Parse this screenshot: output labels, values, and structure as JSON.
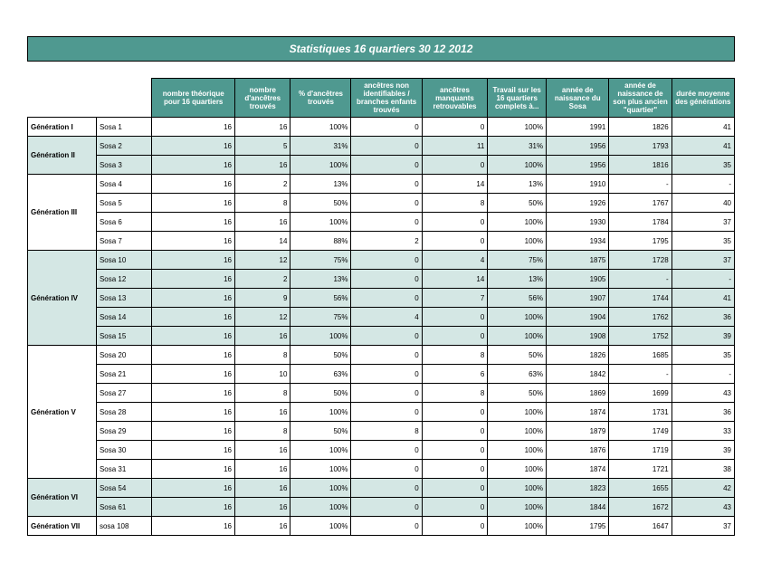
{
  "title": "Statistiques 16 quartiers  30 12 2012",
  "headers": [
    "nombre théorique pour 16 quartiers",
    "nombre d'ancêtres trouvés",
    "% d'ancêtres trouvés",
    "ancêtres non identifiables / branches enfants trouvés",
    "ancêtres manquants retrouvables",
    "Travail sur les 16 quartiers complets à...",
    "année de naissance du Sosa",
    "année de naissance de son plus ancien \"quartier\"",
    "durée moyenne des générations"
  ],
  "groups": [
    {
      "gen": "Génération I",
      "shaded": false,
      "rows": [
        {
          "sosa": "Sosa 1",
          "cells": [
            "16",
            "16",
            "100%",
            "0",
            "0",
            "100%",
            "1991",
            "1826",
            "41"
          ]
        }
      ]
    },
    {
      "gen": "Génération II",
      "shaded": true,
      "rows": [
        {
          "sosa": "Sosa 2",
          "cells": [
            "16",
            "5",
            "31%",
            "0",
            "11",
            "31%",
            "1956",
            "1793",
            "41"
          ]
        },
        {
          "sosa": "Sosa 3",
          "cells": [
            "16",
            "16",
            "100%",
            "0",
            "0",
            "100%",
            "1956",
            "1816",
            "35"
          ]
        }
      ]
    },
    {
      "gen": "Génération III",
      "shaded": false,
      "rows": [
        {
          "sosa": "Sosa 4",
          "cells": [
            "16",
            "2",
            "13%",
            "0",
            "14",
            "13%",
            "1910",
            "-",
            "-"
          ]
        },
        {
          "sosa": "Sosa 5",
          "cells": [
            "16",
            "8",
            "50%",
            "0",
            "8",
            "50%",
            "1926",
            "1767",
            "40"
          ]
        },
        {
          "sosa": "Sosa 6",
          "cells": [
            "16",
            "16",
            "100%",
            "0",
            "0",
            "100%",
            "1930",
            "1784",
            "37"
          ]
        },
        {
          "sosa": "Sosa 7",
          "cells": [
            "16",
            "14",
            "88%",
            "2",
            "0",
            "100%",
            "1934",
            "1795",
            "35"
          ]
        }
      ]
    },
    {
      "gen": "Génération IV",
      "shaded": true,
      "rows": [
        {
          "sosa": "Sosa 10",
          "cells": [
            "16",
            "12",
            "75%",
            "0",
            "4",
            "75%",
            "1875",
            "1728",
            "37"
          ]
        },
        {
          "sosa": "Sosa 12",
          "cells": [
            "16",
            "2",
            "13%",
            "0",
            "14",
            "13%",
            "1905",
            "-",
            "-"
          ]
        },
        {
          "sosa": "Sosa 13",
          "cells": [
            "16",
            "9",
            "56%",
            "0",
            "7",
            "56%",
            "1907",
            "1744",
            "41"
          ]
        },
        {
          "sosa": "Sosa 14",
          "cells": [
            "16",
            "12",
            "75%",
            "4",
            "0",
            "100%",
            "1904",
            "1762",
            "36"
          ]
        },
        {
          "sosa": "Sosa 15",
          "cells": [
            "16",
            "16",
            "100%",
            "0",
            "0",
            "100%",
            "1908",
            "1752",
            "39"
          ]
        }
      ]
    },
    {
      "gen": "Génération V",
      "shaded": false,
      "rows": [
        {
          "sosa": "Sosa 20",
          "cells": [
            "16",
            "8",
            "50%",
            "0",
            "8",
            "50%",
            "1826",
            "1685",
            "35"
          ]
        },
        {
          "sosa": "Sosa 21",
          "cells": [
            "16",
            "10",
            "63%",
            "0",
            "6",
            "63%",
            "1842",
            "-",
            "-"
          ]
        },
        {
          "sosa": "Sosa 27",
          "cells": [
            "16",
            "8",
            "50%",
            "0",
            "8",
            "50%",
            "1869",
            "1699",
            "43"
          ]
        },
        {
          "sosa": "Sosa 28",
          "cells": [
            "16",
            "16",
            "100%",
            "0",
            "0",
            "100%",
            "1874",
            "1731",
            "36"
          ]
        },
        {
          "sosa": "Sosa 29",
          "cells": [
            "16",
            "8",
            "50%",
            "8",
            "0",
            "100%",
            "1879",
            "1749",
            "33"
          ]
        },
        {
          "sosa": "Sosa 30",
          "cells": [
            "16",
            "16",
            "100%",
            "0",
            "0",
            "100%",
            "1876",
            "1719",
            "39"
          ]
        },
        {
          "sosa": "Sosa 31",
          "cells": [
            "16",
            "16",
            "100%",
            "0",
            "0",
            "100%",
            "1874",
            "1721",
            "38"
          ]
        }
      ]
    },
    {
      "gen": "Génération VI",
      "shaded": true,
      "rows": [
        {
          "sosa": "Sosa 54",
          "cells": [
            "16",
            "16",
            "100%",
            "0",
            "0",
            "100%",
            "1823",
            "1655",
            "42"
          ]
        },
        {
          "sosa": "Sosa 61",
          "cells": [
            "16",
            "16",
            "100%",
            "0",
            "0",
            "100%",
            "1844",
            "1672",
            "43"
          ]
        }
      ]
    },
    {
      "gen": "Génération VII",
      "shaded": false,
      "rows": [
        {
          "sosa": "sosa 108",
          "cells": [
            "16",
            "16",
            "100%",
            "0",
            "0",
            "100%",
            "1795",
            "1647",
            "37"
          ]
        }
      ]
    }
  ]
}
